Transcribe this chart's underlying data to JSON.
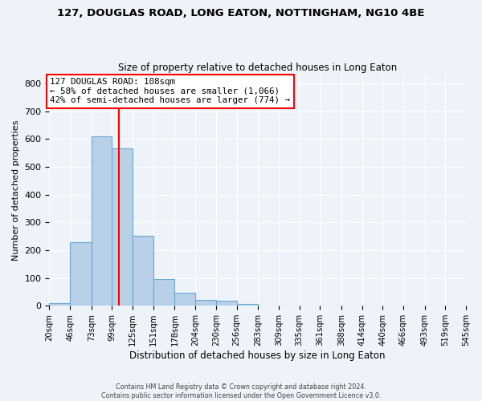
{
  "title": "127, DOUGLAS ROAD, LONG EATON, NOTTINGHAM, NG10 4BE",
  "subtitle": "Size of property relative to detached houses in Long Eaton",
  "xlabel": "Distribution of detached houses by size in Long Eaton",
  "ylabel": "Number of detached properties",
  "bar_color": "#b8d0e8",
  "bar_edge_color": "#6aaad4",
  "background_color": "#eef2f9",
  "grid_color": "#ffffff",
  "bin_labels": [
    "20sqm",
    "46sqm",
    "73sqm",
    "99sqm",
    "125sqm",
    "151sqm",
    "178sqm",
    "204sqm",
    "230sqm",
    "256sqm",
    "283sqm",
    "309sqm",
    "335sqm",
    "361sqm",
    "388sqm",
    "414sqm",
    "440sqm",
    "466sqm",
    "493sqm",
    "519sqm",
    "545sqm"
  ],
  "bar_heights": [
    10,
    228,
    610,
    565,
    252,
    95,
    46,
    22,
    18,
    8,
    0,
    0,
    0,
    0,
    0,
    0,
    0,
    0,
    0,
    0
  ],
  "bin_edges": [
    20,
    46,
    73,
    99,
    125,
    151,
    178,
    204,
    230,
    256,
    283,
    309,
    335,
    361,
    388,
    414,
    440,
    466,
    493,
    519,
    545
  ],
  "ylim": [
    0,
    830
  ],
  "yticks": [
    0,
    100,
    200,
    300,
    400,
    500,
    600,
    700,
    800
  ],
  "red_line_x": 108,
  "annotation_title": "127 DOUGLAS ROAD: 108sqm",
  "annotation_line1": "← 58% of detached houses are smaller (1,066)",
  "annotation_line2": "42% of semi-detached houses are larger (774) →",
  "footer_line1": "Contains HM Land Registry data © Crown copyright and database right 2024.",
  "footer_line2": "Contains public sector information licensed under the Open Government Licence v3.0."
}
